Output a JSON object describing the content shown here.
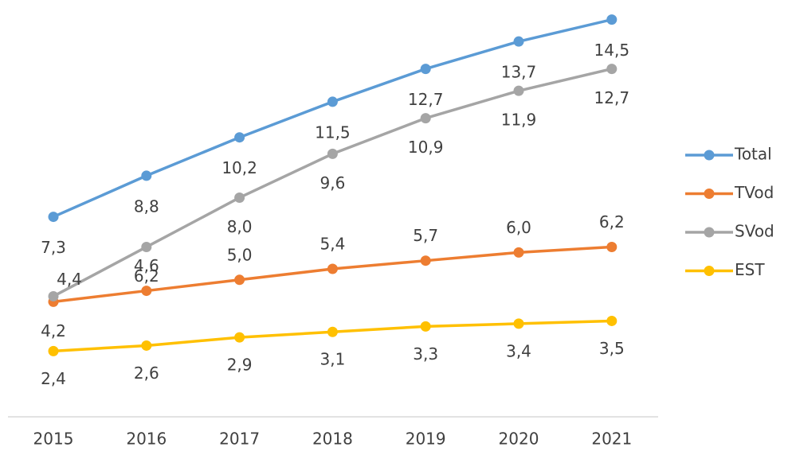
{
  "chart_data": {
    "type": "line",
    "categories": [
      "2015",
      "2016",
      "2017",
      "2018",
      "2019",
      "2020",
      "2021"
    ],
    "series": [
      {
        "name": "Total",
        "color": "#5b9bd5",
        "values": [
          7.3,
          8.8,
          10.2,
          11.5,
          12.7,
          13.7,
          14.5
        ],
        "value_labels": [
          "7,3",
          "8,8",
          "10,2",
          "11,5",
          "12,7",
          "13,7",
          "14,5"
        ]
      },
      {
        "name": "TVod",
        "color": "#ed7d31",
        "values": [
          4.2,
          4.6,
          5.0,
          5.4,
          5.7,
          6.0,
          6.2
        ],
        "value_labels": [
          "4,2",
          "4,6",
          "5,0",
          "5,4",
          "5,7",
          "6,0",
          "6,2"
        ]
      },
      {
        "name": "SVod",
        "color": "#a5a5a5",
        "values": [
          4.4,
          6.2,
          8.0,
          9.6,
          10.9,
          11.9,
          12.7
        ],
        "value_labels": [
          "4,4",
          "6,2",
          "8,0",
          "9,6",
          "10,9",
          "11,9",
          "12,7"
        ]
      },
      {
        "name": "EST",
        "color": "#ffc000",
        "values": [
          2.4,
          2.6,
          2.9,
          3.1,
          3.3,
          3.4,
          3.5
        ],
        "value_labels": [
          "2,4",
          "2,6",
          "2,9",
          "3,1",
          "3,3",
          "3,4",
          "3,5"
        ]
      }
    ],
    "ylim": [
      0,
      15.2
    ],
    "legend": "right"
  }
}
